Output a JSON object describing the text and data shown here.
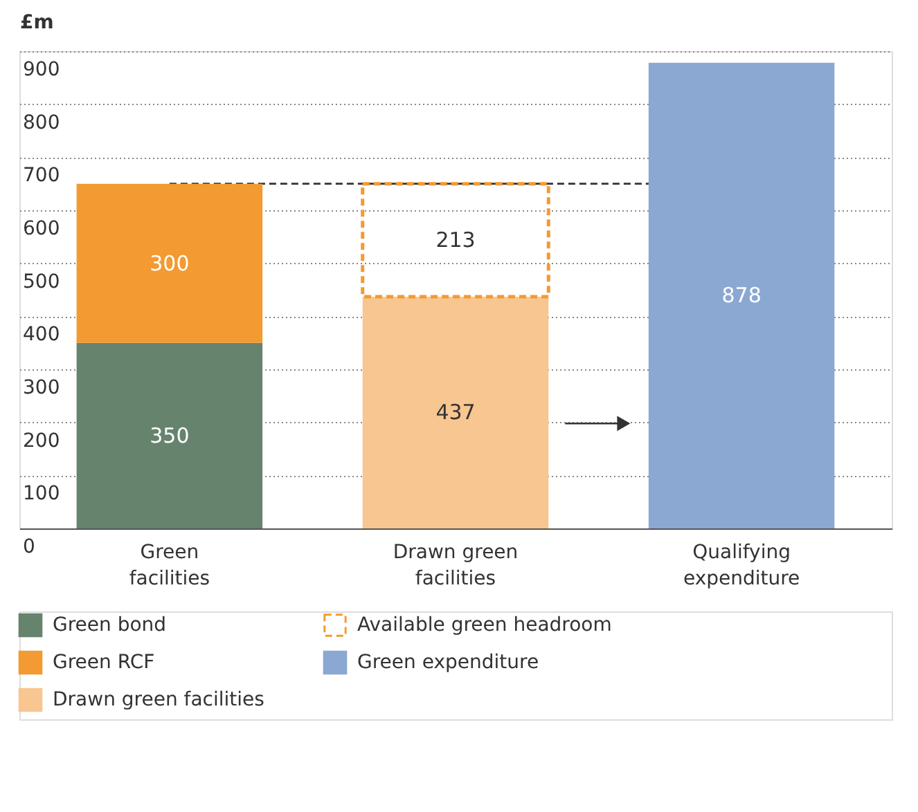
{
  "chart_data": {
    "type": "bar",
    "stacked": true,
    "ylabel": "£m",
    "categories": [
      "Green facilities",
      "Drawn green facilities",
      "Qualifying expenditure"
    ],
    "series": [
      {
        "name": "Green bond",
        "color": "#66836d",
        "values": [
          350,
          null,
          null
        ]
      },
      {
        "name": "Green RCF",
        "color": "#f39a32",
        "values": [
          300,
          null,
          null
        ]
      },
      {
        "name": "Drawn green facilities",
        "color": "#f8c690",
        "values": [
          null,
          437,
          null
        ]
      },
      {
        "name": "Available green headroom",
        "color": "#f39a32",
        "line_style": "dashed",
        "values": [
          null,
          213,
          null
        ]
      },
      {
        "name": "Green expenditure",
        "color": "#8aa8d2",
        "values": [
          null,
          null,
          878
        ]
      }
    ],
    "ylim": [
      0,
      900
    ],
    "yticks": [
      0,
      100,
      200,
      300,
      400,
      500,
      600,
      700,
      800,
      900
    ],
    "grid": "y",
    "data_labels": true,
    "legend": "bottom",
    "ref_lines": [
      {
        "axis": "y",
        "value": 650,
        "color": "#333333",
        "line_style": "dashed"
      }
    ]
  }
}
